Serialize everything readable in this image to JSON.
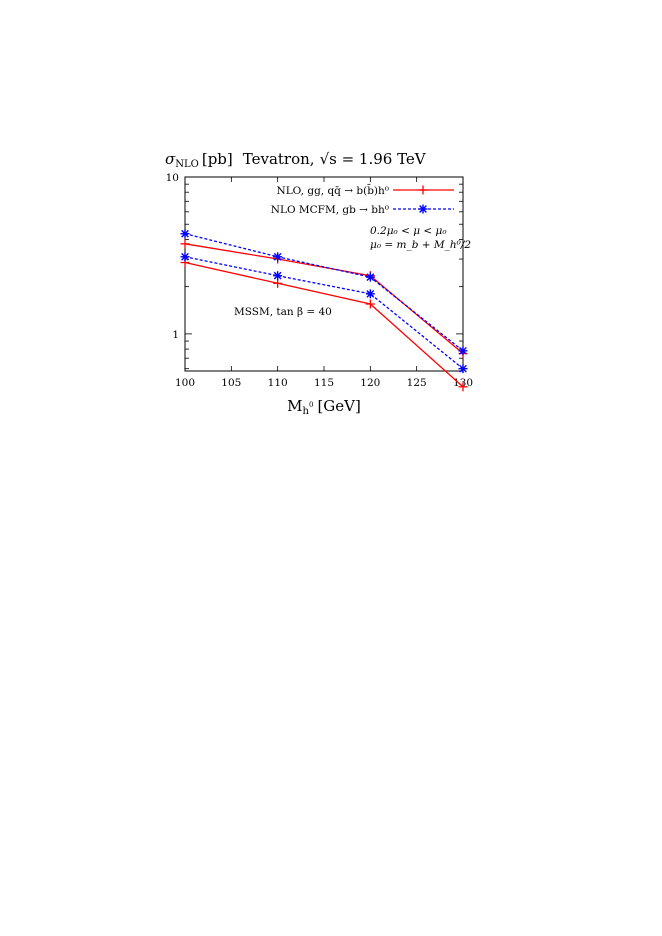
{
  "chart_data": {
    "type": "line",
    "title": {
      "sigma": "σ",
      "sigma_sub": "NLO",
      "unit": "[pb]",
      "collider": "Tevatron,",
      "sqrt": "√s = 1.96 TeV"
    },
    "xlabel": {
      "main": "M",
      "sub": "h",
      "sup": "0",
      "unit": "[GeV]"
    },
    "x_ticks": [
      "100",
      "105",
      "110",
      "115",
      "120",
      "125",
      "130"
    ],
    "y_ticks": [
      "1",
      "10"
    ],
    "xlim": [
      100,
      130
    ],
    "ylim": [
      0.58,
      10
    ],
    "y_scale": "log",
    "x": [
      100,
      110,
      120,
      130
    ],
    "legend": {
      "position": "top-right",
      "entries": [
        {
          "id": "nlo",
          "label": "NLO, gg, qq̄ → b(b̄)h⁰",
          "color": "#ff0000",
          "dash": "solid",
          "marker": "plus"
        },
        {
          "id": "mcfm",
          "label": "NLO MCFM, gb → bh⁰",
          "color": "#0000ff",
          "dash": "dashed",
          "marker": "star"
        }
      ]
    },
    "series": [
      {
        "group": "nlo",
        "color": "#ff0000",
        "dash": "solid",
        "marker": "plus",
        "x": [
          100,
          110,
          120,
          130
        ],
        "values": [
          3.75,
          3.0,
          2.35,
          0.75
        ]
      },
      {
        "group": "nlo",
        "color": "#ff0000",
        "dash": "solid",
        "marker": "plus",
        "x": [
          100,
          110,
          120,
          130
        ],
        "values": [
          2.85,
          2.1,
          1.55,
          0.46
        ]
      },
      {
        "group": "mcfm",
        "color": "#0000ff",
        "dash": "dashed",
        "marker": "star",
        "x": [
          100,
          110,
          120,
          130
        ],
        "values": [
          4.35,
          3.1,
          2.3,
          0.78
        ]
      },
      {
        "group": "mcfm",
        "color": "#0000ff",
        "dash": "dashed",
        "marker": "star",
        "x": [
          100,
          110,
          120,
          130
        ],
        "values": [
          3.1,
          2.35,
          1.8,
          0.6
        ]
      }
    ],
    "annotations": [
      "0.2μ₀ < μ < μ₀",
      "μ₀ = m_b + M_h⁰/2",
      "MSSM, tan β = 40"
    ]
  }
}
